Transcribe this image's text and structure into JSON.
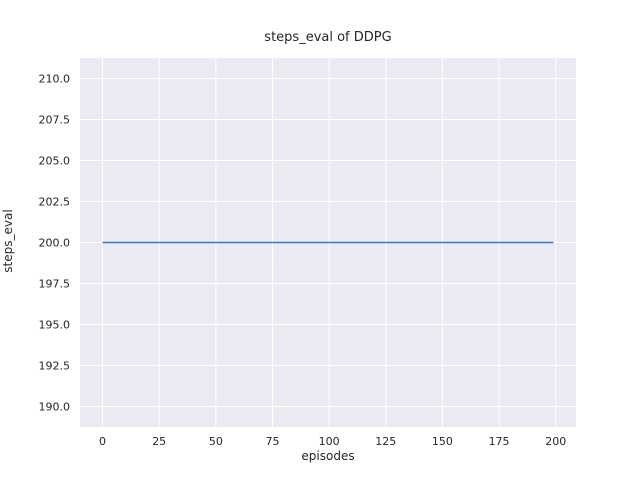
{
  "chart_data": {
    "type": "line",
    "title": "steps_eval of DDPG",
    "xlabel": "episodes",
    "ylabel": "steps_eval",
    "xlim": [
      -9.95,
      208.95
    ],
    "ylim": [
      188.75,
      211.25
    ],
    "x_ticks": [
      0,
      25,
      50,
      75,
      100,
      125,
      150,
      175,
      200
    ],
    "y_ticks": [
      190.0,
      192.5,
      195.0,
      197.5,
      200.0,
      202.5,
      205.0,
      207.5,
      210.0
    ],
    "y_tick_decimals": 1,
    "grid": true,
    "legend_position": "none",
    "plot_background": "#eaeaf2",
    "grid_color": "#ffffff",
    "text_color": "#262626",
    "series": [
      {
        "name": "steps_eval",
        "color": "#4c72b0",
        "x": [
          0,
          199
        ],
        "y": [
          200,
          200
        ]
      }
    ]
  }
}
